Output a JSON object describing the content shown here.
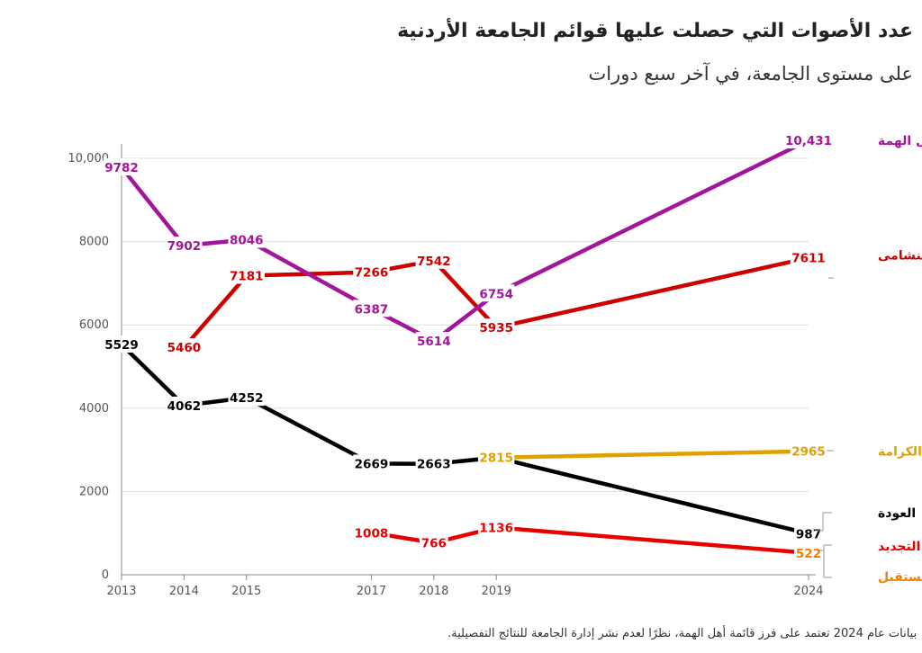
{
  "header": {
    "title": "عدد الأصوات التي حصلت عليها قوائم الجامعة الأردنية",
    "subtitle": "على مستوى الجامعة، في آخر سبع دورات"
  },
  "footer": {
    "note": "بيانات عام 2024 تعتمد على فرز قائمة أهل الهمة، نظرًا لعدم نشر إدارة الجامعة للنتائج التفصيلية."
  },
  "colors": {
    "ahl_alhimma": "#a3159a",
    "nashama": "#cc0000",
    "awda": "#000000",
    "karama": "#e0a100",
    "tajdeed": "#e60000",
    "mustaqbal": "#f07f00",
    "axis": "#888888",
    "grid": "#dddddd"
  },
  "chart_data": {
    "type": "line",
    "x_ticks": [
      2013,
      2014,
      2015,
      2017,
      2018,
      2019,
      2024
    ],
    "x_tick_labels": [
      "2013",
      "2014",
      "2015",
      "2017",
      "2018",
      "2019",
      "2024"
    ],
    "xlim": [
      2013,
      2024
    ],
    "y_ticks": [
      0,
      2000,
      4000,
      6000,
      8000,
      10000
    ],
    "y_tick_labels": [
      "0",
      "2000",
      "4000",
      "6000",
      "8000",
      "10,000"
    ],
    "ylim": [
      0,
      10800
    ],
    "series": [
      {
        "name": "أهل الهمة",
        "color_key": "ahl_alhimma",
        "points": [
          {
            "x": 2013,
            "y": 9782,
            "label": "9782"
          },
          {
            "x": 2014,
            "y": 7902,
            "label": "7902"
          },
          {
            "x": 2015,
            "y": 8046,
            "label": "8046"
          },
          {
            "x": 2017,
            "y": 6387,
            "label": "6387"
          },
          {
            "x": 2018,
            "y": 5614,
            "label": "5614"
          },
          {
            "x": 2019,
            "y": 6754,
            "label": "6754"
          },
          {
            "x": 2024,
            "y": 10431,
            "label": "10,431"
          }
        ]
      },
      {
        "name": "النشامى",
        "color_key": "nashama",
        "points": [
          {
            "x": 2014,
            "y": 5460,
            "label": "5460"
          },
          {
            "x": 2015,
            "y": 7181,
            "label": "7181"
          },
          {
            "x": 2017,
            "y": 7266,
            "label": "7266"
          },
          {
            "x": 2018,
            "y": 7542,
            "label": "7542"
          },
          {
            "x": 2019,
            "y": 5935,
            "label": "5935"
          },
          {
            "x": 2024,
            "y": 7611,
            "label": "7611"
          }
        ]
      },
      {
        "name": "العودة",
        "color_key": "awda",
        "points": [
          {
            "x": 2013,
            "y": 5529,
            "label": "5529"
          },
          {
            "x": 2014,
            "y": 4062,
            "label": "4062"
          },
          {
            "x": 2015,
            "y": 4252,
            "label": "4252"
          },
          {
            "x": 2017,
            "y": 2669,
            "label": "2669"
          },
          {
            "x": 2018,
            "y": 2663,
            "label": "2663"
          },
          {
            "x": 2019,
            "y": 2815,
            "label": ""
          },
          {
            "x": 2024,
            "y": 987,
            "label": "987"
          }
        ]
      },
      {
        "name": "الكرامة",
        "color_key": "karama",
        "points": [
          {
            "x": 2019,
            "y": 2815,
            "label": "2815"
          },
          {
            "x": 2024,
            "y": 2965,
            "label": "2965"
          }
        ]
      },
      {
        "name": "التجديد",
        "color_key": "tajdeed",
        "points": [
          {
            "x": 2017,
            "y": 1008,
            "label": "1008"
          },
          {
            "x": 2018,
            "y": 766,
            "label": "766"
          },
          {
            "x": 2019,
            "y": 1136,
            "label": "1136"
          },
          {
            "x": 2024,
            "y": 522,
            "label": ""
          }
        ]
      },
      {
        "name": "لنا المستقبل",
        "color_key": "mustaqbal",
        "points": [
          {
            "x": 2024,
            "y": 522,
            "label": "522"
          }
        ]
      }
    ]
  }
}
